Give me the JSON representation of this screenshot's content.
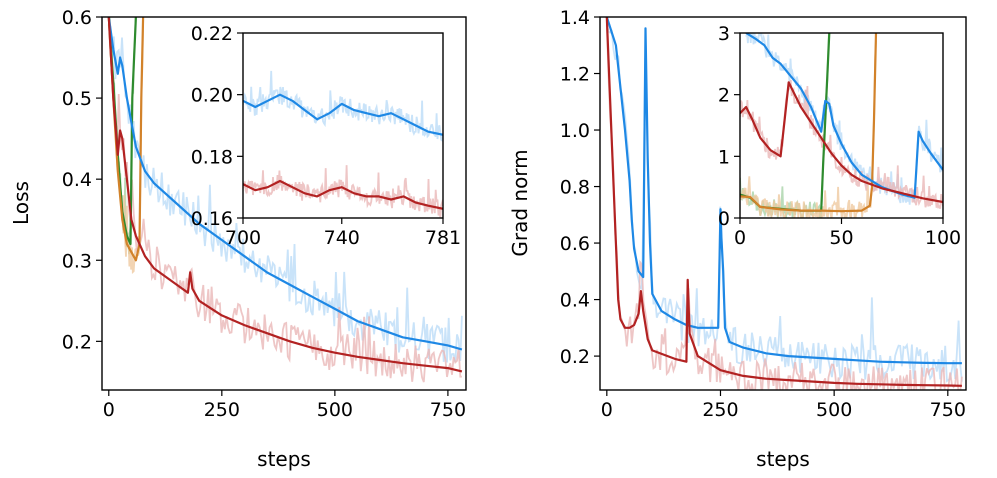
{
  "figure": {
    "colors": {
      "blue": "#1e88e5",
      "blue_raw": "#bcdcf7",
      "red": "#b22222",
      "red_raw": "#eab8b8",
      "green": "#2e8b2e",
      "green_raw": "#a9d3a9",
      "orange": "#d2822a",
      "orange_raw": "#efc9a0"
    }
  },
  "chart_data": [
    {
      "id": "loss-main",
      "type": "line",
      "title": "",
      "xlabel": "steps",
      "ylabel": "Loss",
      "xlim": [
        -15,
        790
      ],
      "ylim": [
        0.14,
        0.6
      ],
      "xticks": [
        0,
        250,
        500,
        750
      ],
      "xtick_labels": [
        "0",
        "250",
        "500",
        "750"
      ],
      "yticks": [
        0.2,
        0.3,
        0.4,
        0.5,
        0.6
      ],
      "ytick_labels": [
        "0.2",
        "0.3",
        "0.4",
        "0.5",
        "0.6"
      ],
      "series": [
        {
          "name": "green",
          "color": "green",
          "x": [
            0,
            10,
            20,
            30,
            40,
            48,
            52,
            56,
            60
          ],
          "y": [
            0.6,
            0.52,
            0.43,
            0.36,
            0.33,
            0.32,
            0.5,
            0.55,
            0.6
          ]
        },
        {
          "name": "orange",
          "color": "orange",
          "x": [
            0,
            10,
            20,
            30,
            40,
            50,
            60,
            68,
            72,
            76
          ],
          "y": [
            0.6,
            0.5,
            0.41,
            0.35,
            0.32,
            0.31,
            0.3,
            0.32,
            0.5,
            0.6
          ]
        },
        {
          "name": "blue",
          "color": "blue",
          "x": [
            0,
            10,
            20,
            25,
            30,
            40,
            50,
            60,
            80,
            100,
            150,
            200,
            250,
            300,
            350,
            400,
            450,
            500,
            550,
            600,
            650,
            700,
            750,
            781
          ],
          "y": [
            0.6,
            0.56,
            0.53,
            0.55,
            0.54,
            0.5,
            0.47,
            0.44,
            0.41,
            0.395,
            0.37,
            0.345,
            0.325,
            0.305,
            0.285,
            0.27,
            0.255,
            0.24,
            0.225,
            0.215,
            0.205,
            0.2,
            0.195,
            0.19
          ]
        },
        {
          "name": "red",
          "color": "red",
          "x": [
            0,
            10,
            20,
            25,
            30,
            40,
            50,
            60,
            80,
            100,
            150,
            175,
            180,
            185,
            200,
            250,
            300,
            350,
            400,
            450,
            500,
            550,
            600,
            650,
            700,
            750,
            781
          ],
          "y": [
            0.6,
            0.5,
            0.43,
            0.46,
            0.45,
            0.4,
            0.35,
            0.33,
            0.305,
            0.29,
            0.27,
            0.26,
            0.285,
            0.265,
            0.25,
            0.232,
            0.22,
            0.21,
            0.2,
            0.192,
            0.186,
            0.181,
            0.177,
            0.173,
            0.17,
            0.167,
            0.163
          ]
        }
      ]
    },
    {
      "id": "loss-inset",
      "type": "line",
      "title": "",
      "xlim": [
        700,
        781
      ],
      "ylim": [
        0.16,
        0.22
      ],
      "xticks": [
        700,
        740,
        781
      ],
      "xtick_labels": [
        "700",
        "740",
        "781"
      ],
      "yticks": [
        0.16,
        0.18,
        0.2,
        0.22
      ],
      "ytick_labels": [
        "0.16",
        "0.18",
        "0.20",
        "0.22"
      ],
      "series": [
        {
          "name": "blue",
          "color": "blue",
          "x": [
            700,
            705,
            710,
            715,
            720,
            725,
            730,
            735,
            740,
            745,
            750,
            755,
            760,
            765,
            770,
            775,
            781
          ],
          "y": [
            0.198,
            0.196,
            0.198,
            0.2,
            0.198,
            0.195,
            0.192,
            0.194,
            0.197,
            0.195,
            0.194,
            0.193,
            0.194,
            0.192,
            0.19,
            0.188,
            0.187
          ]
        },
        {
          "name": "red",
          "color": "red",
          "x": [
            700,
            705,
            710,
            715,
            720,
            725,
            730,
            735,
            740,
            745,
            750,
            755,
            760,
            765,
            770,
            775,
            781
          ],
          "y": [
            0.171,
            0.169,
            0.17,
            0.172,
            0.17,
            0.168,
            0.167,
            0.169,
            0.17,
            0.168,
            0.167,
            0.167,
            0.166,
            0.167,
            0.165,
            0.164,
            0.163
          ]
        }
      ]
    },
    {
      "id": "gradnorm-main",
      "type": "line",
      "title": "",
      "xlabel": "steps",
      "ylabel": "Grad norm",
      "xlim": [
        -15,
        790
      ],
      "ylim": [
        0.08,
        1.4
      ],
      "xticks": [
        0,
        250,
        500,
        750
      ],
      "xtick_labels": [
        "0",
        "250",
        "500",
        "750"
      ],
      "yticks": [
        0.2,
        0.4,
        0.6,
        0.8,
        1.0,
        1.2,
        1.4
      ],
      "ytick_labels": [
        "0.2",
        "0.4",
        "0.6",
        "0.8",
        "1.0",
        "1.2",
        "1.4"
      ],
      "series": [
        {
          "name": "blue",
          "color": "blue",
          "x": [
            0,
            20,
            40,
            50,
            55,
            60,
            70,
            80,
            85,
            90,
            95,
            100,
            120,
            150,
            175,
            200,
            230,
            245,
            250,
            252,
            256,
            260,
            270,
            300,
            350,
            400,
            450,
            500,
            550,
            600,
            650,
            700,
            750,
            781
          ],
          "y": [
            1.4,
            1.3,
            1.0,
            0.82,
            0.68,
            0.58,
            0.5,
            0.48,
            1.36,
            0.9,
            0.6,
            0.42,
            0.36,
            0.33,
            0.31,
            0.3,
            0.3,
            0.3,
            0.72,
            0.62,
            0.5,
            0.3,
            0.25,
            0.23,
            0.21,
            0.2,
            0.195,
            0.19,
            0.185,
            0.18,
            0.178,
            0.176,
            0.175,
            0.175
          ]
        },
        {
          "name": "red",
          "color": "red",
          "x": [
            0,
            15,
            25,
            30,
            40,
            50,
            60,
            70,
            75,
            80,
            90,
            100,
            150,
            175,
            178,
            182,
            200,
            250,
            300,
            350,
            400,
            450,
            500,
            550,
            600,
            650,
            700,
            750,
            781
          ],
          "y": [
            1.4,
            0.8,
            0.4,
            0.33,
            0.3,
            0.3,
            0.31,
            0.35,
            0.43,
            0.36,
            0.26,
            0.22,
            0.19,
            0.18,
            0.47,
            0.28,
            0.2,
            0.15,
            0.13,
            0.12,
            0.115,
            0.11,
            0.105,
            0.102,
            0.1,
            0.098,
            0.097,
            0.096,
            0.095
          ]
        }
      ]
    },
    {
      "id": "gradnorm-inset",
      "type": "line",
      "title": "",
      "xlim": [
        0,
        100
      ],
      "ylim": [
        0,
        3
      ],
      "xticks": [
        0,
        50,
        100
      ],
      "xtick_labels": [
        "0",
        "50",
        "100"
      ],
      "yticks": [
        0,
        1,
        2,
        3
      ],
      "ytick_labels": [
        "0",
        "1",
        "2",
        "3"
      ],
      "series": [
        {
          "name": "green",
          "color": "green",
          "x": [
            0,
            5,
            10,
            20,
            30,
            40,
            41,
            42,
            44
          ],
          "y": [
            0.38,
            0.33,
            0.18,
            0.15,
            0.12,
            0.12,
            0.9,
            1.6,
            3.0
          ]
        },
        {
          "name": "orange",
          "color": "orange",
          "x": [
            0,
            5,
            10,
            20,
            30,
            40,
            50,
            60,
            64,
            65,
            66,
            67
          ],
          "y": [
            0.35,
            0.34,
            0.18,
            0.14,
            0.12,
            0.12,
            0.11,
            0.12,
            0.2,
            0.5,
            1.6,
            3.0
          ]
        },
        {
          "name": "blue",
          "color": "blue",
          "x": [
            3,
            8,
            12,
            16,
            20,
            25,
            30,
            35,
            40,
            42,
            44,
            46,
            50,
            55,
            60,
            70,
            80,
            86,
            88,
            90,
            94,
            100
          ],
          "y": [
            3.0,
            2.9,
            2.8,
            2.6,
            2.5,
            2.3,
            2.1,
            1.8,
            1.4,
            1.9,
            1.85,
            1.5,
            1.2,
            0.9,
            0.7,
            0.5,
            0.38,
            0.33,
            1.4,
            1.25,
            1.05,
            0.78
          ]
        },
        {
          "name": "red",
          "color": "red",
          "x": [
            0,
            3,
            6,
            10,
            15,
            20,
            22,
            24,
            27,
            30,
            35,
            40,
            45,
            50,
            55,
            60,
            70,
            80,
            90,
            100
          ],
          "y": [
            1.7,
            1.8,
            1.6,
            1.3,
            1.1,
            1.0,
            1.6,
            2.2,
            2.0,
            1.8,
            1.55,
            1.3,
            1.05,
            0.85,
            0.7,
            0.6,
            0.48,
            0.4,
            0.32,
            0.26
          ]
        }
      ]
    }
  ]
}
